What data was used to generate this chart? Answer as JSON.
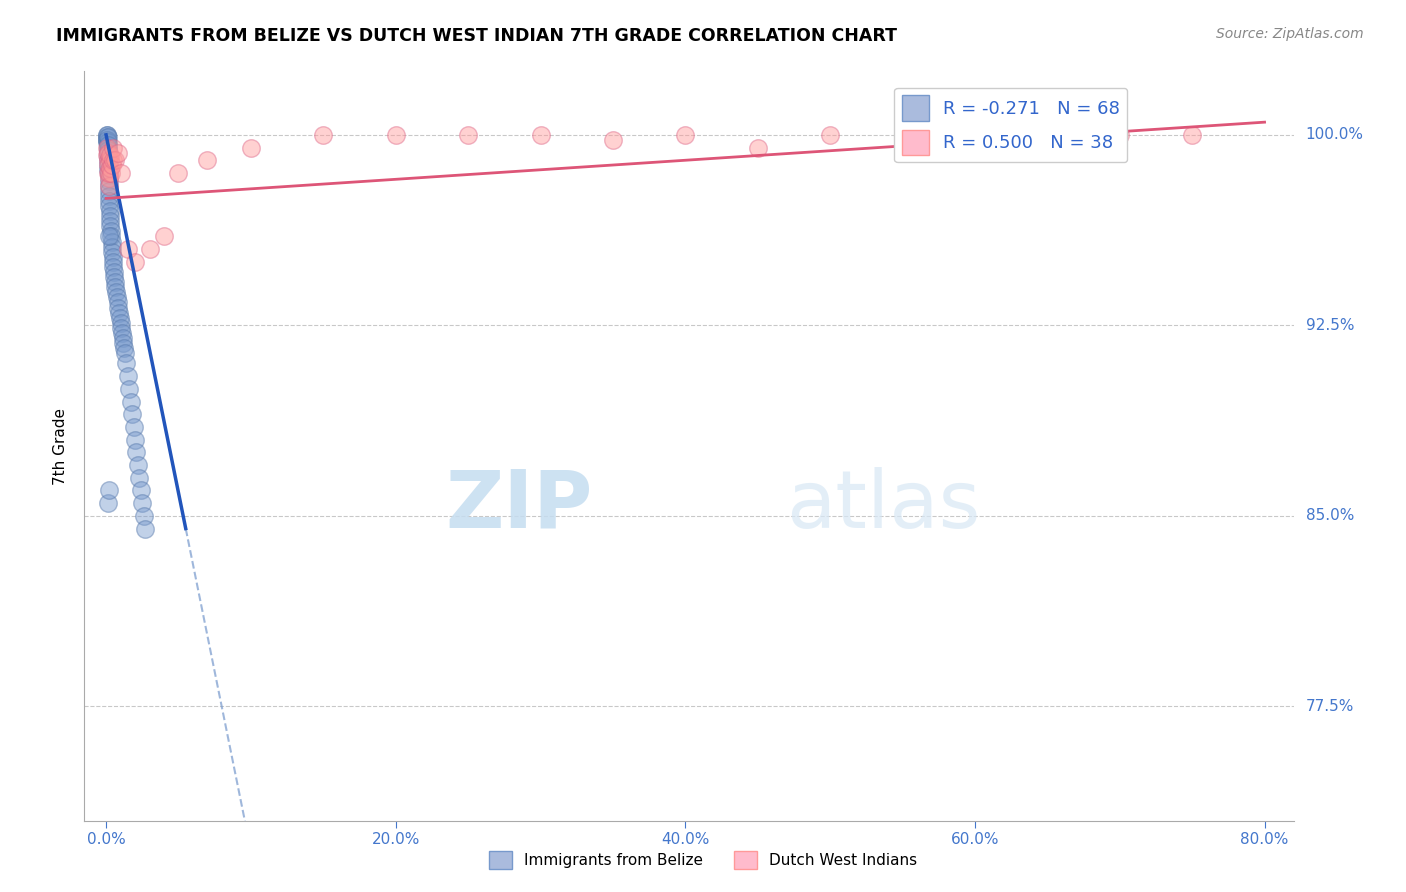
{
  "title": "IMMIGRANTS FROM BELIZE VS DUTCH WEST INDIAN 7TH GRADE CORRELATION CHART",
  "source": "Source: ZipAtlas.com",
  "ylabel": "7th Grade",
  "watermark_zip": "ZIP",
  "watermark_atlas": "atlas",
  "xlim": [
    -1.5,
    82
  ],
  "ylim": [
    73.0,
    102.5
  ],
  "xtick_positions": [
    0.0,
    20.0,
    40.0,
    60.0,
    80.0
  ],
  "xtick_labels": [
    "0.0%",
    "20.0%",
    "40.0%",
    "60.0%",
    "80.0%"
  ],
  "ytick_positions": [
    77.5,
    85.0,
    92.5,
    100.0
  ],
  "ytick_labels": [
    "77.5%",
    "85.0%",
    "92.5%",
    "100.0%"
  ],
  "grid_color": "#bbbbbb",
  "blue_color": "#7799cc",
  "blue_edge_color": "#5577aa",
  "pink_color": "#ff9999",
  "pink_edge_color": "#dd6688",
  "blue_R": -0.271,
  "blue_N": 68,
  "pink_R": 0.5,
  "pink_N": 38,
  "blue_label": "Immigrants from Belize",
  "pink_label": "Dutch West Indians",
  "blue_trend_x0": 0.0,
  "blue_trend_y0": 100.0,
  "blue_trend_x1": 5.5,
  "blue_trend_y1": 84.5,
  "blue_trend_solid_end": 5.5,
  "blue_trend_dashed_x1": 30.0,
  "blue_trend_dashed_y1": 74.0,
  "pink_trend_x0": 0.0,
  "pink_trend_y0": 97.5,
  "pink_trend_x1": 80.0,
  "pink_trend_y1": 100.5,
  "blue_scatter_x": [
    0.05,
    0.06,
    0.07,
    0.08,
    0.08,
    0.09,
    0.1,
    0.1,
    0.1,
    0.11,
    0.12,
    0.13,
    0.14,
    0.15,
    0.16,
    0.17,
    0.18,
    0.19,
    0.2,
    0.21,
    0.22,
    0.23,
    0.25,
    0.26,
    0.28,
    0.3,
    0.32,
    0.35,
    0.38,
    0.4,
    0.42,
    0.45,
    0.48,
    0.5,
    0.55,
    0.58,
    0.6,
    0.65,
    0.7,
    0.75,
    0.8,
    0.85,
    0.9,
    0.95,
    1.0,
    1.05,
    1.1,
    1.15,
    1.2,
    1.25,
    1.3,
    1.4,
    1.5,
    1.6,
    1.7,
    1.8,
    1.9,
    2.0,
    2.1,
    2.2,
    2.3,
    2.4,
    2.5,
    2.6,
    2.7,
    0.15,
    0.2,
    0.22
  ],
  "blue_scatter_y": [
    100.0,
    99.9,
    99.8,
    99.7,
    100.0,
    99.8,
    99.5,
    99.7,
    99.9,
    99.6,
    99.4,
    99.2,
    99.0,
    98.8,
    98.6,
    98.4,
    98.2,
    98.0,
    97.8,
    97.6,
    97.4,
    97.2,
    97.0,
    96.8,
    96.6,
    96.4,
    96.2,
    96.0,
    95.8,
    95.6,
    95.4,
    95.2,
    95.0,
    94.8,
    94.6,
    94.4,
    94.2,
    94.0,
    93.8,
    93.6,
    93.4,
    93.2,
    93.0,
    92.8,
    92.6,
    92.4,
    92.2,
    92.0,
    91.8,
    91.6,
    91.4,
    91.0,
    90.5,
    90.0,
    89.5,
    89.0,
    88.5,
    88.0,
    87.5,
    87.0,
    86.5,
    86.0,
    85.5,
    85.0,
    84.5,
    85.5,
    86.0,
    96.0
  ],
  "pink_scatter_x": [
    0.05,
    0.08,
    0.1,
    0.12,
    0.14,
    0.16,
    0.18,
    0.2,
    0.22,
    0.25,
    0.28,
    0.3,
    0.35,
    0.4,
    0.45,
    0.5,
    0.6,
    0.8,
    1.0,
    1.5,
    2.0,
    3.0,
    4.0,
    5.0,
    7.0,
    10.0,
    15.0,
    20.0,
    25.0,
    30.0,
    35.0,
    40.0,
    45.0,
    50.0,
    55.0,
    60.0,
    70.0,
    75.0
  ],
  "pink_scatter_y": [
    99.5,
    99.2,
    99.0,
    99.3,
    98.8,
    98.5,
    98.3,
    98.0,
    98.5,
    99.0,
    98.7,
    99.2,
    98.5,
    98.8,
    99.0,
    99.5,
    99.0,
    99.3,
    98.5,
    95.5,
    95.0,
    95.5,
    96.0,
    98.5,
    99.0,
    99.5,
    100.0,
    100.0,
    100.0,
    100.0,
    99.8,
    100.0,
    99.5,
    100.0,
    100.0,
    100.0,
    100.0,
    100.0
  ]
}
